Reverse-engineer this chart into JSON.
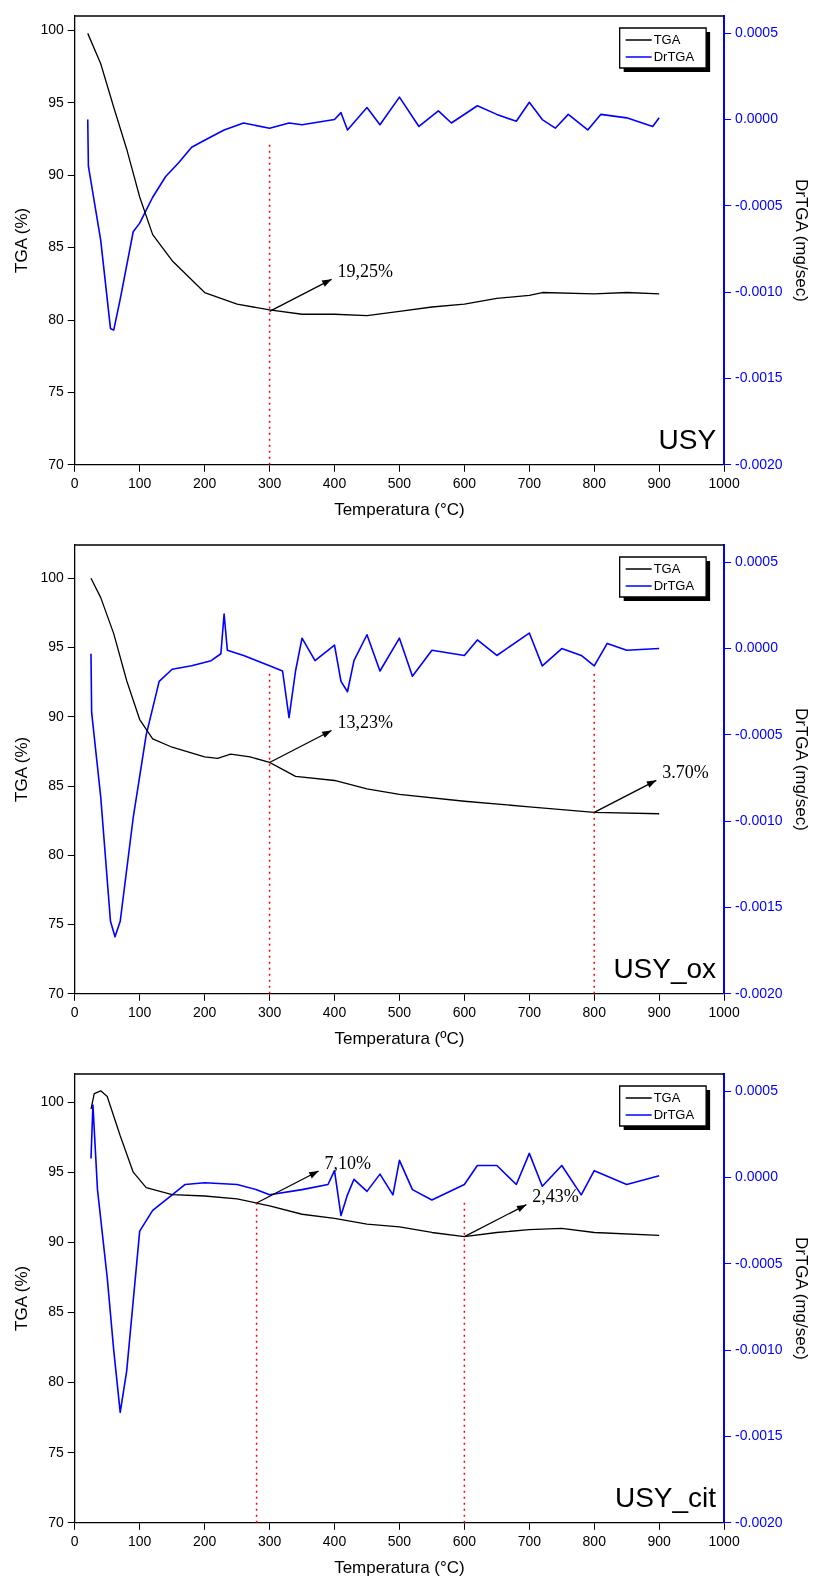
{
  "chart_data": [
    {
      "type": "line",
      "xlabel": "Temperatura (°C)",
      "ylabel": "TGA (%)",
      "y2label": "DrTGA (mg/sec)",
      "xlim": [
        0,
        1000
      ],
      "xticks": [
        0,
        100,
        200,
        300,
        400,
        500,
        600,
        700,
        800,
        900,
        1000
      ],
      "ylim": [
        70,
        101
      ],
      "yticks": [
        70,
        75,
        80,
        85,
        90,
        95,
        100
      ],
      "y2lim": [
        -0.002,
        0.0006
      ],
      "y2ticks": [
        {
          "value": -0.002,
          "label": "-0.0020"
        },
        {
          "value": -0.0015,
          "label": "-0.0015"
        },
        {
          "value": -0.001,
          "label": "-0.0010"
        },
        {
          "value": -0.0005,
          "label": "-0.0005"
        },
        {
          "value": 0,
          "label": "0.0000"
        },
        {
          "value": 0.0005,
          "label": "0.0005"
        }
      ],
      "legend": "top right",
      "grid": false,
      "marker": "none",
      "ref_lines": [
        {
          "axis": "x",
          "value": 300,
          "color": "#ff0000",
          "line_style": "dotted"
        }
      ],
      "annotations": [
        {
          "text": "19,25%",
          "x": 300,
          "y": 80.6
        },
        "USY"
      ],
      "series": [
        {
          "name": "TGA",
          "color": "#000000",
          "x": [
            20,
            40,
            60,
            80,
            100,
            120,
            150,
            200,
            250,
            300,
            350,
            400,
            450,
            500,
            550,
            600,
            650,
            700,
            720,
            800,
            850,
            900
          ],
          "values": [
            99.8,
            97.7,
            94.7,
            91.8,
            88.5,
            85.9,
            84.1,
            81.9,
            81.1,
            80.7,
            80.4,
            80.4,
            80.3,
            80.6,
            80.9,
            81.1,
            81.5,
            81.7,
            81.9,
            81.8,
            81.9,
            81.8
          ]
        },
        {
          "name": "DrTGA",
          "color": "#0000ff",
          "axis": "y2",
          "x": [
            20,
            21,
            40,
            55,
            60,
            70,
            90,
            100,
            120,
            140,
            160,
            180,
            200,
            230,
            260,
            300,
            330,
            350,
            400,
            410,
            420,
            450,
            470,
            500,
            530,
            560,
            580,
            620,
            650,
            680,
            700,
            720,
            740,
            760,
            790,
            810,
            850,
            890,
            900
          ],
          "values": [
            0,
            -0.00027,
            -0.0007,
            -0.00121,
            -0.00122,
            -0.00104,
            -0.00065,
            -0.0006,
            -0.00045,
            -0.00033,
            -0.00025,
            -0.00016,
            -0.00012,
            -6e-05,
            -2e-05,
            -5e-05,
            -2e-05,
            -3e-05,
            0,
            4e-05,
            -6e-05,
            7e-05,
            -3e-05,
            0.00013,
            -4e-05,
            5e-05,
            -2e-05,
            8e-05,
            3e-05,
            -1e-05,
            0.0001,
            0,
            -5e-05,
            3e-05,
            -6e-05,
            3e-05,
            1e-05,
            -4e-05,
            1e-05
          ]
        }
      ]
    },
    {
      "type": "line",
      "xlabel": "Temperatura (ºC)",
      "ylabel": "TGA (%)",
      "y2label": "DrTGA (mg/sec)",
      "xlim": [
        0,
        1000
      ],
      "xticks": [
        0,
        100,
        200,
        300,
        400,
        500,
        600,
        700,
        800,
        900,
        1000
      ],
      "ylim": [
        70,
        102.4
      ],
      "yticks": [
        70,
        75,
        80,
        85,
        90,
        95,
        100
      ],
      "y2lim": [
        -0.002,
        0.0006
      ],
      "y2ticks": [
        {
          "value": -0.002,
          "label": "-0.0020"
        },
        {
          "value": -0.0015,
          "label": "-0.0015"
        },
        {
          "value": -0.001,
          "label": "-0.0010"
        },
        {
          "value": -0.0005,
          "label": "-0.0005"
        },
        {
          "value": 0,
          "label": "0.0000"
        },
        {
          "value": 0.0005,
          "label": "0.0005"
        }
      ],
      "legend": "top right",
      "grid": false,
      "marker": "none",
      "ref_lines": [
        {
          "axis": "x",
          "value": 300,
          "color": "#ff0000",
          "line_style": "dotted"
        },
        {
          "axis": "x",
          "value": 800,
          "color": "#ff0000",
          "line_style": "dotted"
        }
      ],
      "annotations": [
        {
          "text": "13,23%",
          "x": 300,
          "y": 86.7
        },
        {
          "text": "3.70%",
          "x": 800,
          "y": 83.1
        },
        "USY_ox"
      ],
      "series": [
        {
          "name": "TGA",
          "color": "#000000",
          "x": [
            25,
            40,
            60,
            80,
            100,
            120,
            150,
            200,
            220,
            240,
            270,
            300,
            320,
            340,
            400,
            450,
            500,
            600,
            700,
            800,
            900
          ],
          "values": [
            100,
            98.6,
            96,
            92.6,
            89.8,
            88.4,
            87.8,
            87.1,
            87.0,
            87.3,
            87.1,
            86.7,
            86.2,
            85.7,
            85.4,
            84.8,
            84.4,
            83.9,
            83.5,
            83.1,
            83.0
          ]
        },
        {
          "name": "DrTGA",
          "color": "#0000ff",
          "axis": "y2",
          "x": [
            25,
            26,
            40,
            55,
            62,
            70,
            90,
            110,
            130,
            150,
            180,
            210,
            225,
            230,
            235,
            260,
            300,
            320,
            330,
            340,
            350,
            370,
            400,
            410,
            420,
            430,
            450,
            470,
            500,
            520,
            550,
            600,
            620,
            650,
            700,
            720,
            750,
            780,
            800,
            820,
            850,
            900
          ],
          "values": [
            -3e-05,
            -0.00037,
            -0.00086,
            -0.00158,
            -0.00167,
            -0.00158,
            -0.00098,
            -0.0005,
            -0.00019,
            -0.00012,
            -0.0001,
            -7e-05,
            -3e-05,
            0.0002,
            -1e-05,
            -4e-05,
            -0.0001,
            -0.00013,
            -0.0004,
            -0.00013,
            6e-05,
            -7e-05,
            2e-05,
            -0.00019,
            -0.00025,
            -7e-05,
            8e-05,
            -0.00013,
            6e-05,
            -0.00016,
            -1e-05,
            -4e-05,
            5e-05,
            -4e-05,
            9e-05,
            -0.0001,
            0,
            -4e-05,
            -0.0001,
            3e-05,
            -1e-05,
            0
          ]
        }
      ]
    },
    {
      "type": "line",
      "xlabel": "Temperatura (°C)",
      "ylabel": "TGA (%)",
      "y2label": "DrTGA (mg/sec)",
      "xlim": [
        0,
        1000
      ],
      "xticks": [
        0,
        100,
        200,
        300,
        400,
        500,
        600,
        700,
        800,
        900,
        1000
      ],
      "ylim": [
        70,
        102
      ],
      "yticks": [
        70,
        75,
        80,
        85,
        90,
        95,
        100
      ],
      "y2lim": [
        -0.002,
        0.0006
      ],
      "y2ticks": [
        {
          "value": -0.002,
          "label": "-0.0020"
        },
        {
          "value": -0.0015,
          "label": "-0.0015"
        },
        {
          "value": -0.001,
          "label": "-0.0010"
        },
        {
          "value": -0.0005,
          "label": "-0.0005"
        },
        {
          "value": 0,
          "label": "0.0000"
        },
        {
          "value": 0.0005,
          "label": "0.0005"
        }
      ],
      "legend": "top right",
      "grid": false,
      "marker": "none",
      "ref_lines": [
        {
          "axis": "x",
          "value": 280,
          "color": "#ff0000",
          "line_style": "dotted"
        },
        {
          "axis": "x",
          "value": 600,
          "color": "#ff0000",
          "line_style": "dotted"
        }
      ],
      "annotations": [
        {
          "text": "7,10%",
          "x": 280,
          "y": 92.8
        },
        {
          "text": "2,43%",
          "x": 600,
          "y": 90.4
        },
        "USY_cit"
      ],
      "series": [
        {
          "name": "TGA",
          "color": "#000000",
          "x": [
            25,
            30,
            40,
            50,
            70,
            90,
            110,
            150,
            200,
            250,
            280,
            300,
            350,
            400,
            450,
            500,
            550,
            600,
            650,
            700,
            750,
            800,
            900
          ],
          "values": [
            99.5,
            100.6,
            100.8,
            100.4,
            97.6,
            95.0,
            93.9,
            93.4,
            93.3,
            93.1,
            92.8,
            92.6,
            92.0,
            91.7,
            91.3,
            91.1,
            90.7,
            90.4,
            90.7,
            90.9,
            91.0,
            90.7,
            90.5
          ]
        },
        {
          "name": "DrTGA",
          "color": "#0000ff",
          "axis": "y2",
          "x": [
            25,
            28,
            35,
            50,
            60,
            70,
            80,
            100,
            120,
            150,
            170,
            200,
            250,
            280,
            300,
            350,
            390,
            400,
            410,
            420,
            430,
            450,
            470,
            490,
            500,
            520,
            550,
            600,
            620,
            650,
            680,
            700,
            720,
            750,
            780,
            800,
            850,
            900
          ],
          "values": [
            0.00011,
            0.00042,
            -7e-05,
            -0.00058,
            -0.001,
            -0.00136,
            -0.00112,
            -0.00031,
            -0.00019,
            -0.0001,
            -4e-05,
            -3e-05,
            -4e-05,
            -7e-05,
            -0.0001,
            -7e-05,
            -4e-05,
            4e-05,
            -0.00022,
            -0.0001,
            -1e-05,
            -8e-05,
            2e-05,
            -0.0001,
            0.0001,
            -7e-05,
            -0.00013,
            -4e-05,
            7e-05,
            7e-05,
            -4e-05,
            0.00014,
            -5e-05,
            7e-05,
            -0.0001,
            4e-05,
            -4e-05,
            1e-05
          ]
        }
      ]
    }
  ]
}
